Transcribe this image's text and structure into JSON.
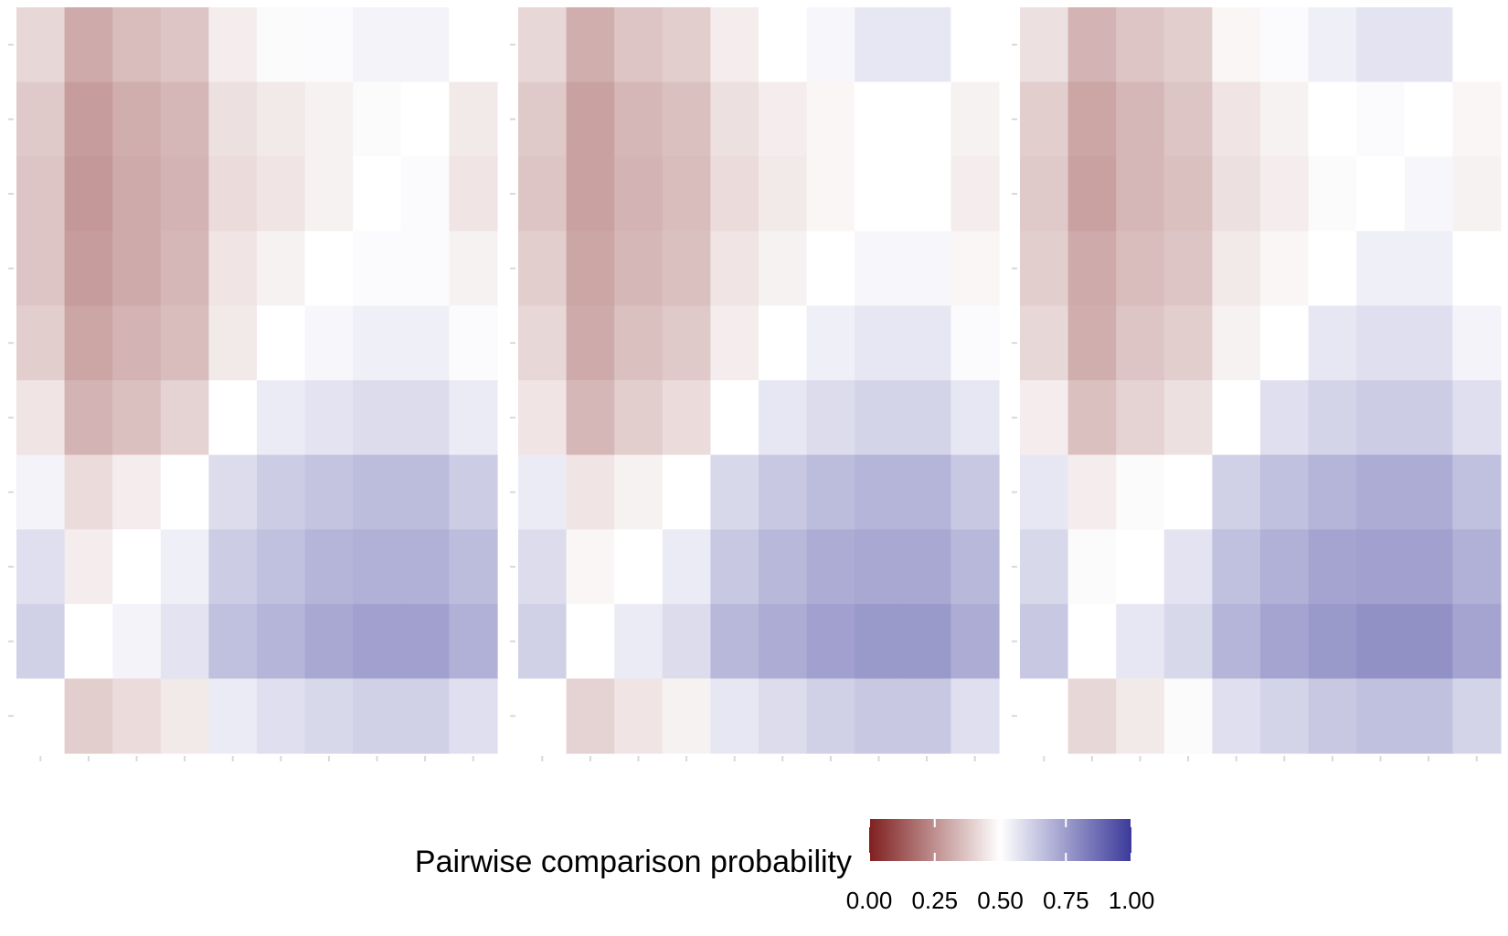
{
  "chart_data": [
    {
      "type": "heatmap",
      "panel": 1,
      "scale": [
        0,
        1
      ],
      "missing_diagonal": true,
      "grid_rows": 10,
      "grid_cols": 10,
      "values": [
        [
          0.41,
          0.31,
          0.35,
          0.37,
          0.46,
          0.49,
          0.51,
          0.53,
          0.53,
          null
        ],
        [
          0.38,
          0.28,
          0.32,
          0.34,
          0.43,
          0.45,
          0.47,
          0.49,
          null,
          0.45
        ],
        [
          0.37,
          0.27,
          0.31,
          0.33,
          0.42,
          0.44,
          0.47,
          null,
          0.51,
          0.44
        ],
        [
          0.37,
          0.28,
          0.31,
          0.34,
          0.44,
          0.47,
          null,
          0.51,
          0.51,
          0.47
        ],
        [
          0.39,
          0.3,
          0.33,
          0.35,
          0.45,
          null,
          0.52,
          0.54,
          0.54,
          0.51
        ],
        [
          0.44,
          0.33,
          0.36,
          0.4,
          null,
          0.55,
          0.57,
          0.59,
          0.59,
          0.55
        ],
        [
          0.53,
          0.42,
          0.46,
          null,
          0.59,
          0.63,
          0.65,
          0.67,
          0.67,
          0.63
        ],
        [
          0.58,
          0.46,
          null,
          0.54,
          0.63,
          0.66,
          0.69,
          0.7,
          0.7,
          0.67
        ],
        [
          0.62,
          null,
          0.53,
          0.57,
          0.66,
          0.69,
          0.72,
          0.74,
          0.74,
          0.7
        ],
        [
          null,
          0.39,
          0.42,
          0.45,
          0.55,
          0.58,
          0.6,
          0.62,
          0.62,
          0.58
        ]
      ]
    },
    {
      "type": "heatmap",
      "panel": 2,
      "scale": [
        0,
        1
      ],
      "missing_diagonal": true,
      "grid_rows": 10,
      "grid_cols": 10,
      "values": [
        [
          0.41,
          0.32,
          0.37,
          0.39,
          0.46,
          0.5,
          0.52,
          0.56,
          0.56,
          null
        ],
        [
          0.38,
          0.29,
          0.34,
          0.36,
          0.43,
          0.46,
          0.48,
          0.5,
          null,
          0.47
        ],
        [
          0.37,
          0.29,
          0.33,
          0.35,
          0.42,
          0.45,
          0.48,
          null,
          0.5,
          0.46
        ],
        [
          0.39,
          0.3,
          0.34,
          0.36,
          0.44,
          0.47,
          null,
          0.52,
          0.52,
          0.48
        ],
        [
          0.41,
          0.31,
          0.36,
          0.38,
          0.46,
          null,
          0.54,
          0.56,
          0.56,
          0.51
        ],
        [
          0.44,
          0.34,
          0.39,
          0.42,
          null,
          0.56,
          0.59,
          0.61,
          0.61,
          0.56
        ],
        [
          0.55,
          0.44,
          0.47,
          null,
          0.6,
          0.64,
          0.67,
          0.69,
          0.69,
          0.64
        ],
        [
          0.59,
          0.48,
          null,
          0.55,
          0.64,
          0.68,
          0.71,
          0.72,
          0.72,
          0.68
        ],
        [
          0.62,
          null,
          0.55,
          0.59,
          0.68,
          0.71,
          0.74,
          0.76,
          0.76,
          0.71
        ],
        [
          null,
          0.4,
          0.44,
          0.47,
          0.56,
          0.59,
          0.62,
          0.64,
          0.64,
          0.58
        ]
      ]
    },
    {
      "type": "heatmap",
      "panel": 3,
      "scale": [
        0,
        1
      ],
      "missing_diagonal": true,
      "grid_rows": 10,
      "grid_cols": 10,
      "values": [
        [
          0.43,
          0.33,
          0.37,
          0.39,
          0.48,
          0.51,
          0.54,
          0.57,
          0.57,
          null
        ],
        [
          0.39,
          0.3,
          0.34,
          0.37,
          0.44,
          0.47,
          0.5,
          0.51,
          null,
          0.48
        ],
        [
          0.38,
          0.29,
          0.34,
          0.36,
          0.43,
          0.46,
          0.49,
          null,
          0.52,
          0.47
        ],
        [
          0.39,
          0.31,
          0.35,
          0.37,
          0.45,
          0.48,
          null,
          0.54,
          0.54,
          0.5
        ],
        [
          0.41,
          0.32,
          0.37,
          0.39,
          0.47,
          null,
          0.56,
          0.58,
          0.58,
          0.53
        ],
        [
          0.46,
          0.36,
          0.4,
          0.43,
          null,
          0.58,
          0.61,
          0.63,
          0.63,
          0.58
        ],
        [
          0.56,
          0.46,
          0.49,
          null,
          0.62,
          0.66,
          0.69,
          0.71,
          0.71,
          0.66
        ],
        [
          0.6,
          0.49,
          null,
          0.57,
          0.66,
          0.7,
          0.73,
          0.74,
          0.74,
          0.7
        ],
        [
          0.64,
          null,
          0.56,
          0.6,
          0.69,
          0.73,
          0.76,
          0.78,
          0.78,
          0.73
        ],
        [
          null,
          0.41,
          0.45,
          0.49,
          0.58,
          0.61,
          0.64,
          0.66,
          0.66,
          0.61
        ]
      ]
    }
  ],
  "legend": {
    "title": "Pairwise comparison probability",
    "ticks": [
      "0.00",
      "0.25",
      "0.50",
      "0.75",
      "1.00"
    ],
    "tick_values": [
      0,
      0.25,
      0.5,
      0.75,
      1
    ],
    "colors": {
      "low": "#7f1f1f",
      "mid": "#ffffff",
      "high": "#3b3a9a"
    },
    "placement": "bottom"
  },
  "axes": {
    "tick_color": "#d9d9d9",
    "grid": false
  }
}
